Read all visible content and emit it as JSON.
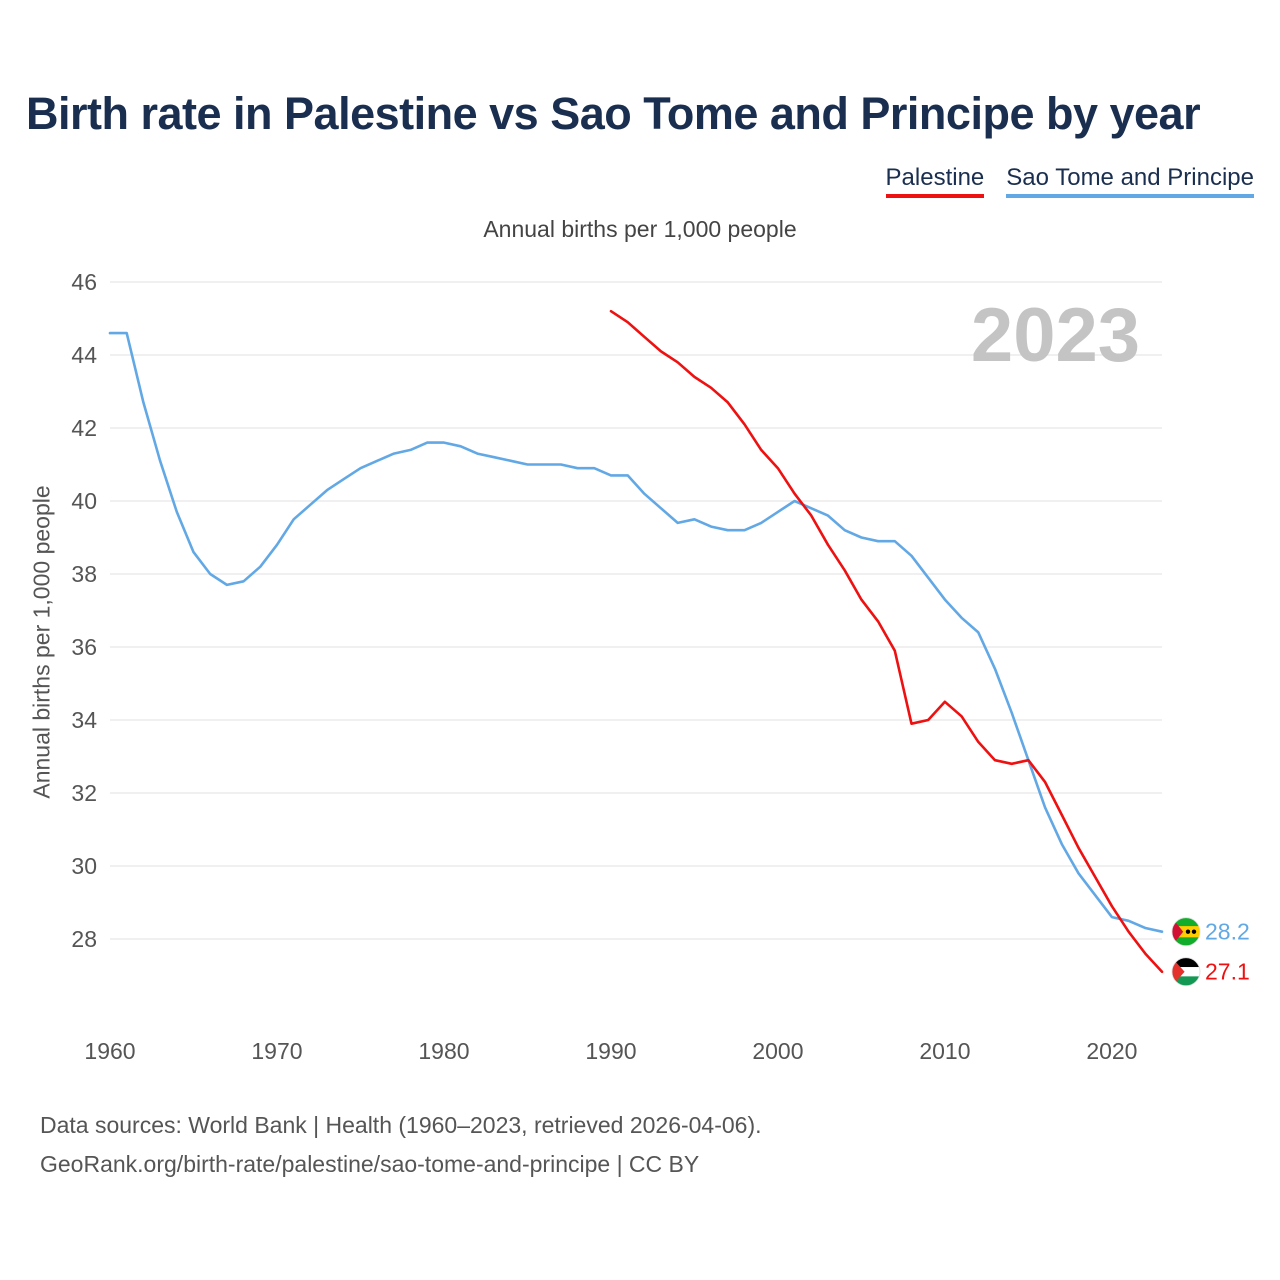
{
  "chart_data": {
    "type": "line",
    "title": "Birth rate in Palestine vs Sao Tome and Principe by year",
    "subtitle": "Annual births per 1,000 people",
    "ylabel": "Annual births per 1,000 people",
    "xlabel": "",
    "watermark_year": "2023",
    "xlim": [
      1960,
      2023
    ],
    "ylim": [
      26,
      46
    ],
    "x_ticks": [
      1960,
      1970,
      1980,
      1990,
      2000,
      2010,
      2020
    ],
    "y_ticks": [
      28,
      30,
      32,
      34,
      36,
      38,
      40,
      42,
      44,
      46
    ],
    "legend_position": "top-right",
    "series": [
      {
        "name": "Palestine",
        "color": "#ee1111",
        "end_label": "27.1",
        "flag_icon": "palestine-flag-icon",
        "x": [
          1990,
          1991,
          1992,
          1993,
          1994,
          1995,
          1996,
          1997,
          1998,
          1999,
          2000,
          2001,
          2002,
          2003,
          2004,
          2005,
          2006,
          2007,
          2008,
          2009,
          2010,
          2011,
          2012,
          2013,
          2014,
          2015,
          2016,
          2017,
          2018,
          2019,
          2020,
          2021,
          2022,
          2023
        ],
        "values": [
          45.2,
          44.9,
          44.5,
          44.1,
          43.8,
          43.4,
          43.1,
          42.7,
          42.1,
          41.4,
          40.9,
          40.2,
          39.6,
          38.8,
          38.1,
          37.3,
          36.7,
          35.9,
          33.9,
          34.0,
          34.5,
          34.1,
          33.4,
          32.9,
          32.8,
          32.9,
          32.3,
          31.4,
          30.5,
          29.7,
          28.9,
          28.2,
          27.6,
          27.1
        ]
      },
      {
        "name": "Sao Tome and Principe",
        "color": "#62a8e5",
        "end_label": "28.2",
        "flag_icon": "sao-tome-flag-icon",
        "x": [
          1960,
          1961,
          1962,
          1963,
          1964,
          1965,
          1966,
          1967,
          1968,
          1969,
          1970,
          1971,
          1972,
          1973,
          1974,
          1975,
          1976,
          1977,
          1978,
          1979,
          1980,
          1981,
          1982,
          1983,
          1984,
          1985,
          1986,
          1987,
          1988,
          1989,
          1990,
          1991,
          1992,
          1993,
          1994,
          1995,
          1996,
          1997,
          1998,
          1999,
          2000,
          2001,
          2002,
          2003,
          2004,
          2005,
          2006,
          2007,
          2008,
          2009,
          2010,
          2011,
          2012,
          2013,
          2014,
          2015,
          2016,
          2017,
          2018,
          2019,
          2020,
          2021,
          2022,
          2023
        ],
        "values": [
          44.6,
          44.6,
          42.7,
          41.1,
          39.7,
          38.6,
          38.0,
          37.7,
          37.8,
          38.2,
          38.8,
          39.5,
          39.9,
          40.3,
          40.6,
          40.9,
          41.1,
          41.3,
          41.4,
          41.6,
          41.6,
          41.5,
          41.3,
          41.2,
          41.1,
          41.0,
          41.0,
          41.0,
          40.9,
          40.9,
          40.7,
          40.7,
          40.2,
          39.8,
          39.4,
          39.5,
          39.3,
          39.2,
          39.2,
          39.4,
          39.7,
          40.0,
          39.8,
          39.6,
          39.2,
          39.0,
          38.9,
          38.9,
          38.5,
          37.9,
          37.3,
          36.8,
          36.4,
          35.4,
          34.2,
          32.9,
          31.6,
          30.6,
          29.8,
          29.2,
          28.6,
          28.5,
          28.3,
          28.2
        ]
      }
    ]
  },
  "footer": {
    "line1": "Data sources: World Bank | Health (1960–2023, retrieved 2026-04-06).",
    "line2": "GeoRank.org/birth-rate/palestine/sao-tome-and-principe | CC BY"
  }
}
